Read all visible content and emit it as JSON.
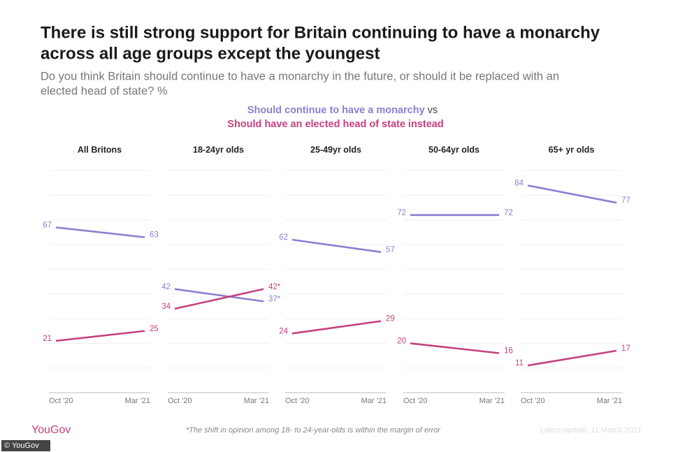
{
  "header": {
    "title": [
      "There is still strong support for Britain continuing to have a monarchy",
      "across all age groups except the youngest"
    ],
    "subtitle": [
      "Do you think Britain should continue to have a monarchy in the future, or should it be replaced with an",
      "elected head of state? %"
    ],
    "vs": "vs"
  },
  "chart_data": {
    "type": "line",
    "panels": [
      "All Britons",
      "18-24yr olds",
      "25-49yr olds",
      "50-64yr olds",
      "65+ yr olds"
    ],
    "categories": [
      "Oct '20",
      "Mar '21"
    ],
    "series": [
      {
        "name": "Should continue to have a monarchy",
        "color": "#8a7fd0",
        "values": [
          [
            67,
            63
          ],
          [
            42,
            37
          ],
          [
            62,
            57
          ],
          [
            72,
            72
          ],
          [
            84,
            77
          ]
        ],
        "value_labels": [
          [
            "67",
            "63"
          ],
          [
            "42",
            "37*"
          ],
          [
            "62",
            "57"
          ],
          [
            "72",
            "72"
          ],
          [
            "84",
            "77"
          ]
        ]
      },
      {
        "name": "Should have an elected head of state instead",
        "color": "#c6417f",
        "values": [
          [
            21,
            25
          ],
          [
            34,
            42
          ],
          [
            24,
            29
          ],
          [
            20,
            16
          ],
          [
            11,
            17
          ]
        ],
        "value_labels": [
          [
            "21",
            "25"
          ],
          [
            "34",
            "42*"
          ],
          [
            "24",
            "29"
          ],
          [
            "20",
            "16"
          ],
          [
            "11",
            "17"
          ]
        ]
      }
    ],
    "ylim": [
      0,
      90
    ],
    "yticks": [
      0,
      10,
      20,
      30,
      40,
      50,
      60,
      70,
      80,
      90
    ],
    "grid": true
  },
  "footer": {
    "brand": "YouGov",
    "note": "*The shift in opinion among 18- to 24-year-olds is within the margin of error",
    "update": "Latest update: 11 March 2021",
    "credit": "© YouGov"
  }
}
